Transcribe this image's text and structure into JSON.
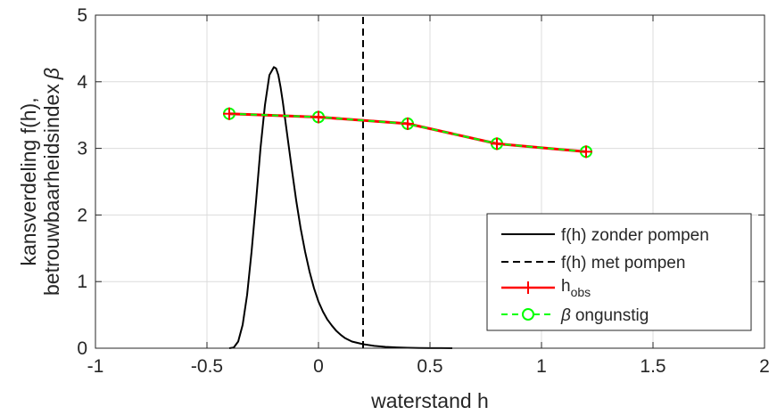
{
  "chart_data": {
    "type": "line",
    "xlabel": "waterstand h",
    "ylabel_line1": "kansverdeling f(h),",
    "ylabel_line2": "betrouwbaarheidsindex",
    "ylabel_symbol": "β",
    "xlim": [
      -1,
      2
    ],
    "ylim": [
      0,
      5
    ],
    "xticks": [
      -1,
      -0.5,
      0,
      0.5,
      1,
      1.5,
      2
    ],
    "xtick_labels": [
      "-1",
      "-0.5",
      "0",
      "0.5",
      "1",
      "1.5",
      "2"
    ],
    "yticks": [
      0,
      1,
      2,
      3,
      4,
      5
    ],
    "ytick_labels": [
      "0",
      "1",
      "2",
      "3",
      "4",
      "5"
    ],
    "grid": true,
    "legend_position": "bottom-right",
    "series": [
      {
        "name": "f(h) zonder pompen",
        "style": "solid",
        "color": "#000000",
        "x": [
          -0.4,
          -0.38,
          -0.36,
          -0.34,
          -0.32,
          -0.3,
          -0.28,
          -0.26,
          -0.24,
          -0.22,
          -0.2,
          -0.19,
          -0.18,
          -0.17,
          -0.16,
          -0.15,
          -0.14,
          -0.12,
          -0.1,
          -0.08,
          -0.06,
          -0.04,
          -0.02,
          0,
          0.02,
          0.04,
          0.06,
          0.08,
          0.1,
          0.12,
          0.15,
          0.2,
          0.25,
          0.3,
          0.35,
          0.4,
          0.45,
          0.5,
          0.55,
          0.6
        ],
        "y": [
          0,
          0.01,
          0.1,
          0.35,
          0.8,
          1.45,
          2.2,
          3.0,
          3.65,
          4.1,
          4.22,
          4.2,
          4.1,
          3.92,
          3.7,
          3.45,
          3.2,
          2.7,
          2.22,
          1.8,
          1.45,
          1.15,
          0.9,
          0.7,
          0.55,
          0.43,
          0.34,
          0.26,
          0.2,
          0.15,
          0.1,
          0.06,
          0.035,
          0.02,
          0.012,
          0.007,
          0.004,
          0.002,
          0.001,
          0.0
        ]
      },
      {
        "name": "f(h) met pompen",
        "style": "dashed",
        "color": "#000000",
        "x": [
          0.2,
          0.2
        ],
        "y": [
          0,
          5
        ]
      },
      {
        "name": "h",
        "name_sub": "obs",
        "style": "solid",
        "color": "#ff0000",
        "marker": "plus",
        "x": [
          -0.4,
          0,
          0.4,
          0.8,
          1.2
        ],
        "y": [
          3.52,
          3.47,
          3.37,
          3.07,
          2.95
        ]
      },
      {
        "name": "ongunstig",
        "name_symbol": "β",
        "style": "dashed",
        "color": "#00ff00",
        "marker": "circle",
        "x": [
          -0.4,
          0,
          0.4,
          0.8,
          1.2
        ],
        "y": [
          3.52,
          3.47,
          3.37,
          3.07,
          2.95
        ]
      }
    ]
  }
}
